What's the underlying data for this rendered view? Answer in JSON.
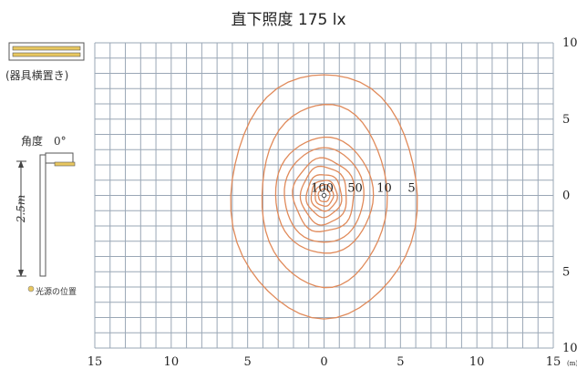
{
  "title": "直下照度 175 lx",
  "fixture": {
    "label": "(器具横置き)",
    "angle_label": "角度　0°",
    "height_label": "2.5m",
    "source_label": "光源の位置",
    "colors": {
      "fixture_fill": "#e8c760",
      "fixture_stroke": "#555555",
      "source_dot": "#e8c760"
    }
  },
  "grid": {
    "x_tick_labels": [
      "15",
      "10",
      "5",
      "0",
      "5",
      "10",
      "15"
    ],
    "x_unit": "(m)",
    "y_tick_labels": [
      "10",
      "5",
      "0",
      "5",
      "10"
    ],
    "line_color": "#9aa7b6"
  },
  "contours": {
    "color": "#e08a5a",
    "levels": [
      100,
      50,
      10,
      5
    ],
    "labels": [
      "100",
      "50",
      "10",
      "5"
    ]
  }
}
